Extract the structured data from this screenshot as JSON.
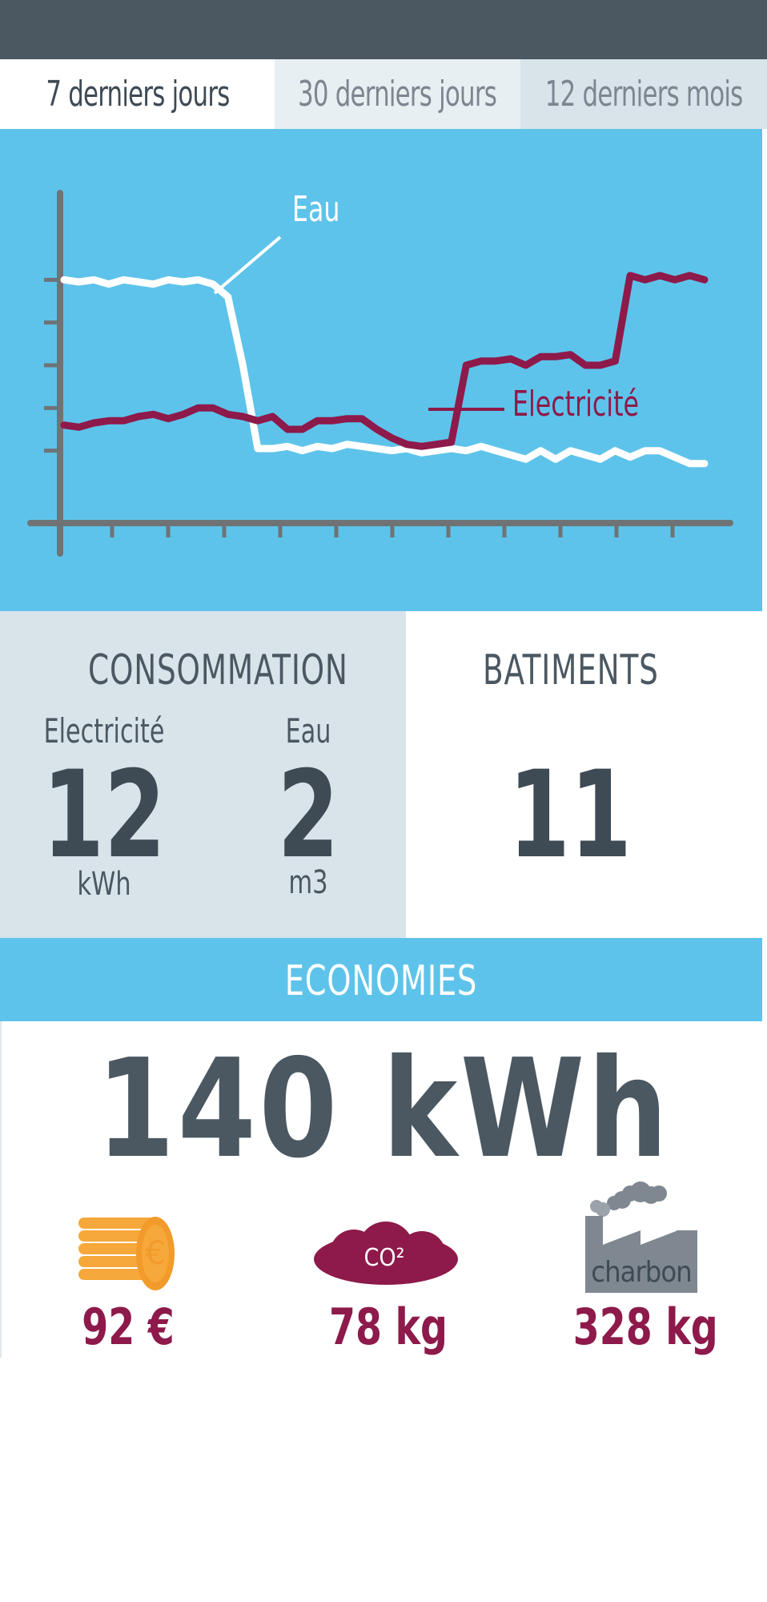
{
  "tabs": [
    {
      "label": "7 derniers jours",
      "active": true
    },
    {
      "label": "30 derniers jours",
      "active": false
    },
    {
      "label": "12 derniers mois",
      "active": false
    }
  ],
  "chart_data": {
    "type": "line",
    "series": [
      {
        "name": "Eau",
        "color": "#ffffff",
        "values": [
          4.0,
          3.95,
          4.0,
          3.9,
          4.0,
          3.95,
          3.9,
          4.0,
          3.95,
          4.0,
          3.9,
          3.6,
          2.0,
          0.05,
          0.05,
          0.1,
          0.0,
          0.1,
          0.05,
          0.15,
          0.1,
          0.05,
          0.0,
          0.05,
          -0.05,
          0.0,
          0.05,
          0.0,
          0.1,
          0.0,
          -0.1,
          -0.2,
          0.0,
          -0.2,
          0.0,
          -0.1,
          -0.2,
          0.0,
          -0.15,
          0.0,
          0.0,
          -0.15,
          -0.3,
          -0.3
        ]
      },
      {
        "name": "Electricité",
        "color": "#8d1a4a",
        "values": [
          0.6,
          0.55,
          0.65,
          0.7,
          0.7,
          0.8,
          0.85,
          0.75,
          0.85,
          1.0,
          1.0,
          0.85,
          0.8,
          0.7,
          0.8,
          0.5,
          0.5,
          0.7,
          0.7,
          0.75,
          0.75,
          0.5,
          0.3,
          0.15,
          0.1,
          0.15,
          0.2,
          2.0,
          2.1,
          2.1,
          2.15,
          2.0,
          2.2,
          2.2,
          2.25,
          2.0,
          2.0,
          2.1,
          4.1,
          4.0,
          4.1,
          4.0,
          4.1,
          4.0
        ]
      }
    ],
    "ylim": [
      -1,
      5
    ],
    "y_ticks": 5,
    "x_ticks": 11
  },
  "consommation": {
    "title": "CONSOMMATION",
    "electricite": {
      "label": "Electricité",
      "value": "12",
      "unit": "kWh"
    },
    "eau": {
      "label": "Eau",
      "value": "2",
      "unit": "m3"
    }
  },
  "batiments": {
    "title": "BATIMENTS",
    "value": "11"
  },
  "economies": {
    "title": "ECONOMIES",
    "total": "140 kWh",
    "money": {
      "icon": "coins-icon",
      "value": "92 €"
    },
    "co2": {
      "icon": "co2-cloud-icon",
      "label": "CO²",
      "value": "78 kg"
    },
    "charbon": {
      "icon": "factory-icon",
      "label": "charbon",
      "value": "328 kg"
    }
  },
  "colors": {
    "header": "#4b5862",
    "chart_bg": "#5ec3ea",
    "accent": "#8d1a4a",
    "panel": "#d8e3ea",
    "coin": "#f6a83a"
  }
}
